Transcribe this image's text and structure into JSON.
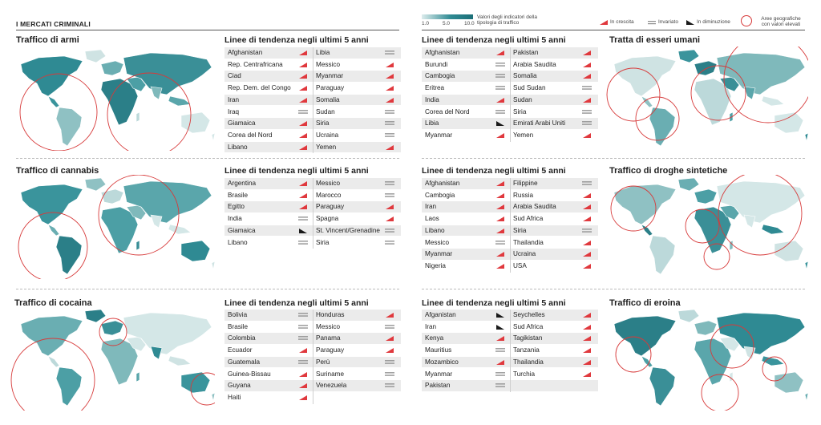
{
  "header": {
    "title": "I MERCATI CRIMINALI"
  },
  "legend": {
    "scale_min": "1.0",
    "scale_mid": "5.0",
    "scale_max": "10.0",
    "caption": "Valori degli indicatori della tipologia di traffico",
    "up": "In crescita",
    "same": "Invariato",
    "down": "In diminuzione",
    "area": "Aree geografiche con valori elevati"
  },
  "trend_title": "Linee di tendenza negli ultimi 5 anni",
  "colors": {
    "up": "#e0393e",
    "down": "#1a1a1a",
    "same": "#8c8c8c",
    "map_dark": "#2f8a93",
    "map_light": "#d8e8e8",
    "circle": "#d73a3a"
  },
  "sections": [
    {
      "title": "Traffico di armi",
      "rows": [
        [
          {
            "n": "Afghanistan",
            "t": "up"
          },
          {
            "n": "Libia",
            "t": "same"
          }
        ],
        [
          {
            "n": "Rep. Centrafricana",
            "t": "up"
          },
          {
            "n": "Messico",
            "t": "up"
          }
        ],
        [
          {
            "n": "Ciad",
            "t": "up"
          },
          {
            "n": "Myanmar",
            "t": "up"
          }
        ],
        [
          {
            "n": "Rep. Dem. del Congo",
            "t": "up"
          },
          {
            "n": "Paraguay",
            "t": "up"
          }
        ],
        [
          {
            "n": "Iran",
            "t": "up"
          },
          {
            "n": "Somalia",
            "t": "up"
          }
        ],
        [
          {
            "n": "Iraq",
            "t": "same"
          },
          {
            "n": "Sudan",
            "t": "same"
          }
        ],
        [
          {
            "n": "Giamaica",
            "t": "up"
          },
          {
            "n": "Siria",
            "t": "same"
          }
        ],
        [
          {
            "n": "Corea del Nord",
            "t": "up"
          },
          {
            "n": "Ucraina",
            "t": "same"
          }
        ],
        [
          {
            "n": "Libano",
            "t": "up"
          },
          {
            "n": "Yemen",
            "t": "up"
          }
        ]
      ]
    },
    {
      "title": "Tratta di esseri umani",
      "rows": [
        [
          {
            "n": "Afghanistan",
            "t": "up"
          },
          {
            "n": "Pakistan",
            "t": "up"
          }
        ],
        [
          {
            "n": "Burundi",
            "t": "same"
          },
          {
            "n": "Arabia Saudita",
            "t": "up"
          }
        ],
        [
          {
            "n": "Cambogia",
            "t": "same"
          },
          {
            "n": "Somalia",
            "t": "up"
          }
        ],
        [
          {
            "n": "Eritrea",
            "t": "same"
          },
          {
            "n": "Sud Sudan",
            "t": "same"
          }
        ],
        [
          {
            "n": "India",
            "t": "up"
          },
          {
            "n": "Sudan",
            "t": "up"
          }
        ],
        [
          {
            "n": "Corea del Nord",
            "t": "same"
          },
          {
            "n": "Siria",
            "t": "same"
          }
        ],
        [
          {
            "n": "Libia",
            "t": "down"
          },
          {
            "n": "Emirati Arabi Uniti",
            "t": "same"
          }
        ],
        [
          {
            "n": "Myanmar",
            "t": "up"
          },
          {
            "n": "Yemen",
            "t": "up"
          }
        ]
      ]
    },
    {
      "title": "Traffico di cannabis",
      "rows": [
        [
          {
            "n": "Argentina",
            "t": "up"
          },
          {
            "n": "Messico",
            "t": "same"
          }
        ],
        [
          {
            "n": "Brasile",
            "t": "up"
          },
          {
            "n": "Marocco",
            "t": "same"
          }
        ],
        [
          {
            "n": "Egitto",
            "t": "up"
          },
          {
            "n": "Paraguay",
            "t": "up"
          }
        ],
        [
          {
            "n": "India",
            "t": "same"
          },
          {
            "n": "Spagna",
            "t": "up"
          }
        ],
        [
          {
            "n": "Giamaica",
            "t": "down"
          },
          {
            "n": "St. Vincent/Grenadine",
            "t": "same"
          }
        ],
        [
          {
            "n": "Libano",
            "t": "same"
          },
          {
            "n": "Siria",
            "t": "same"
          }
        ]
      ]
    },
    {
      "title": "Traffico di droghe sintetiche",
      "rows": [
        [
          {
            "n": "Afghanistan",
            "t": "up"
          },
          {
            "n": "Filippine",
            "t": "same"
          }
        ],
        [
          {
            "n": "Cambogia",
            "t": "up"
          },
          {
            "n": "Russia",
            "t": "up"
          }
        ],
        [
          {
            "n": "Iran",
            "t": "up"
          },
          {
            "n": "Arabia Saudita",
            "t": "up"
          }
        ],
        [
          {
            "n": "Laos",
            "t": "up"
          },
          {
            "n": "Sud Africa",
            "t": "up"
          }
        ],
        [
          {
            "n": "Libano",
            "t": "up"
          },
          {
            "n": "Siria",
            "t": "same"
          }
        ],
        [
          {
            "n": "Messico",
            "t": "same"
          },
          {
            "n": "Thailandia",
            "t": "up"
          }
        ],
        [
          {
            "n": "Myanmar",
            "t": "up"
          },
          {
            "n": "Ucraina",
            "t": "up"
          }
        ],
        [
          {
            "n": "Nigeria",
            "t": "up"
          },
          {
            "n": "USA",
            "t": "up"
          }
        ]
      ]
    },
    {
      "title": "Traffico di cocaina",
      "rows": [
        [
          {
            "n": "Bolivia",
            "t": "same"
          },
          {
            "n": "Honduras",
            "t": "up"
          }
        ],
        [
          {
            "n": "Brasile",
            "t": "same"
          },
          {
            "n": "Messico",
            "t": "same"
          }
        ],
        [
          {
            "n": "Colombia",
            "t": "same"
          },
          {
            "n": "Panama",
            "t": "up"
          }
        ],
        [
          {
            "n": "Ecuador",
            "t": "up"
          },
          {
            "n": "Paraguay",
            "t": "up"
          }
        ],
        [
          {
            "n": "Guatemala",
            "t": "same"
          },
          {
            "n": "Perù",
            "t": "same"
          }
        ],
        [
          {
            "n": "Guinea-Bissau",
            "t": "up"
          },
          {
            "n": "Suriname",
            "t": "same"
          }
        ],
        [
          {
            "n": "Guyana",
            "t": "up"
          },
          {
            "n": "Venezuela",
            "t": "same"
          }
        ],
        [
          {
            "n": "Haiti",
            "t": "up"
          },
          {
            "n": "",
            "t": ""
          }
        ]
      ]
    },
    {
      "title": "Traffico di eroina",
      "rows": [
        [
          {
            "n": "Afganistan",
            "t": "down"
          },
          {
            "n": "Seychelles",
            "t": "up"
          }
        ],
        [
          {
            "n": "Iran",
            "t": "down"
          },
          {
            "n": "Sud Africa",
            "t": "up"
          }
        ],
        [
          {
            "n": "Kenya",
            "t": "up"
          },
          {
            "n": "Tagikistan",
            "t": "up"
          }
        ],
        [
          {
            "n": "Mauritius",
            "t": "same"
          },
          {
            "n": "Tanzania",
            "t": "up"
          }
        ],
        [
          {
            "n": "Mozambico",
            "t": "up"
          },
          {
            "n": "Thailandia",
            "t": "up"
          }
        ],
        [
          {
            "n": "Myanmar",
            "t": "same"
          },
          {
            "n": "Turchia",
            "t": "up"
          }
        ],
        [
          {
            "n": "Pakistan",
            "t": "same"
          },
          {
            "n": "",
            "t": ""
          }
        ]
      ]
    }
  ]
}
